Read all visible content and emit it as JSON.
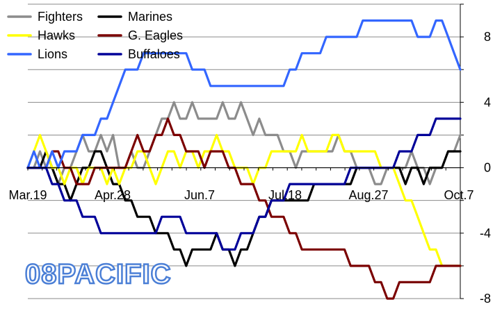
{
  "watermark": "08PACIFIC",
  "chart_data": {
    "type": "line",
    "title": "",
    "xlabel": "",
    "ylabel": "",
    "x_ticks": [
      "Mar.19",
      "Apr.28",
      "Jun.7",
      "Jul.18",
      "Aug.27",
      "Oct.7"
    ],
    "ylim": [
      -8,
      10
    ],
    "y_ticks": [
      -8,
      -4,
      0,
      4,
      8
    ],
    "grid": "horizontal",
    "legend_position": "top-left",
    "series": [
      {
        "name": "Fighters",
        "color": "#8c8c8c",
        "values": [
          0,
          0,
          1,
          0,
          0,
          -1,
          0,
          0,
          1,
          2,
          1,
          1,
          2,
          1,
          2,
          0,
          0,
          1,
          0,
          0,
          1,
          2,
          3,
          3,
          4,
          3,
          3,
          4,
          3,
          3,
          3,
          3,
          4,
          3,
          3,
          4,
          3,
          2,
          3,
          2,
          2,
          2,
          1,
          1,
          0,
          1,
          1,
          1,
          1,
          1,
          1,
          2,
          1,
          1,
          0,
          0,
          0,
          -1,
          -1,
          0,
          0,
          0,
          0,
          1,
          0,
          0,
          -1,
          0,
          0,
          1,
          1,
          2
        ]
      },
      {
        "name": "Marines",
        "color": "#000000",
        "values": [
          0,
          0,
          0,
          1,
          0,
          -1,
          -1,
          -2,
          -1,
          0,
          0,
          1,
          1,
          0,
          -1,
          -1,
          -2,
          -2,
          -3,
          -3,
          -3,
          -4,
          -4,
          -4,
          -5,
          -5,
          -6,
          -5,
          -5,
          -5,
          -5,
          -4,
          -5,
          -5,
          -6,
          -5,
          -5,
          -4,
          -3,
          -3,
          -2,
          -2,
          -2,
          -2,
          -2,
          -2,
          -2,
          -1,
          -1,
          -1,
          -1,
          -1,
          -1,
          -1,
          0,
          0,
          0,
          0,
          0,
          0,
          0,
          0,
          -1,
          0,
          0,
          -1,
          0,
          0,
          0,
          1,
          1,
          1
        ]
      },
      {
        "name": "Hawks",
        "color": "#ffff00",
        "values": [
          0,
          1,
          2,
          1,
          0,
          0,
          -1,
          0,
          0,
          -1,
          0,
          0,
          0,
          -1,
          0,
          -1,
          0,
          0,
          1,
          1,
          0,
          -1,
          0,
          1,
          1,
          0,
          1,
          1,
          0,
          1,
          1,
          2,
          1,
          1,
          0,
          0,
          0,
          -1,
          0,
          0,
          1,
          1,
          1,
          1,
          1,
          2,
          1,
          1,
          1,
          1,
          2,
          2,
          1,
          1,
          1,
          1,
          1,
          1,
          0,
          0,
          0,
          -1,
          -2,
          -2,
          -3,
          -4,
          -5,
          -5,
          -6,
          -6,
          -6,
          -6
        ]
      },
      {
        "name": "G. Eagles",
        "color": "#7b0000",
        "values": [
          0,
          0,
          0,
          0,
          1,
          1,
          0,
          0,
          -1,
          -1,
          -1,
          0,
          0,
          0,
          0,
          0,
          0,
          1,
          2,
          1,
          1,
          2,
          2,
          3,
          2,
          2,
          1,
          1,
          1,
          0,
          1,
          1,
          1,
          0,
          0,
          -1,
          -1,
          -1,
          -2,
          -2,
          -3,
          -3,
          -3,
          -4,
          -4,
          -5,
          -5,
          -5,
          -5,
          -5,
          -5,
          -5,
          -5,
          -6,
          -6,
          -6,
          -6,
          -7,
          -7,
          -8,
          -8,
          -7,
          -7,
          -7,
          -7,
          -7,
          -7,
          -6,
          -6,
          -6,
          -6,
          -6
        ]
      },
      {
        "name": "Lions",
        "color": "#3366ff",
        "values": [
          0,
          1,
          0,
          0,
          1,
          0,
          1,
          1,
          1,
          2,
          2,
          2,
          3,
          3,
          4,
          5,
          6,
          6,
          6,
          7,
          7,
          7,
          7,
          7,
          7,
          7,
          7,
          6,
          6,
          6,
          5,
          5,
          5,
          5,
          5,
          5,
          5,
          5,
          5,
          5,
          5,
          5,
          5,
          6,
          6,
          7,
          7,
          7,
          7,
          8,
          8,
          8,
          8,
          8,
          8,
          9,
          9,
          9,
          9,
          9,
          9,
          9,
          9,
          9,
          8,
          8,
          8,
          9,
          9,
          8,
          7,
          6
        ]
      },
      {
        "name": "Buffaloes",
        "color": "#000099",
        "values": [
          0,
          0,
          0,
          0,
          -1,
          -1,
          -2,
          -2,
          -2,
          -3,
          -3,
          -3,
          -4,
          -4,
          -4,
          -4,
          -4,
          -4,
          -4,
          -4,
          -4,
          -4,
          -3,
          -3,
          -3,
          -3,
          -4,
          -4,
          -4,
          -4,
          -4,
          -4,
          -5,
          -5,
          -5,
          -4,
          -4,
          -4,
          -3,
          -3,
          -2,
          -2,
          -2,
          -1,
          -1,
          -1,
          -1,
          -1,
          -1,
          -1,
          -1,
          -1,
          -1,
          0,
          0,
          0,
          0,
          0,
          0,
          0,
          0,
          1,
          1,
          1,
          2,
          2,
          2,
          3,
          3,
          3,
          3,
          3
        ]
      }
    ]
  }
}
